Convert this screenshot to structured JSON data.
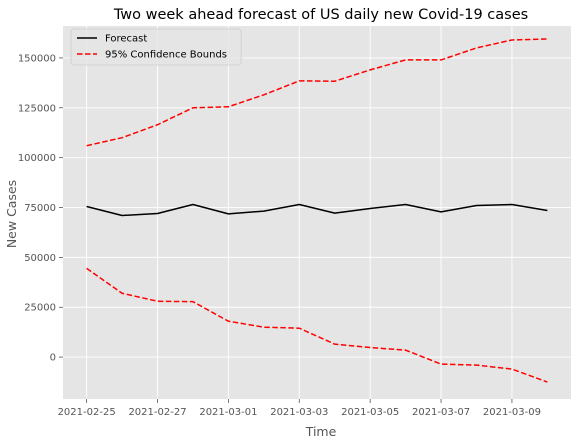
{
  "chart_data": {
    "type": "line",
    "title": "Two week ahead forecast of US daily new Covid-19 cases",
    "xlabel": "Time",
    "ylabel": "New Cases",
    "x": [
      "2021-02-25",
      "2021-02-26",
      "2021-02-27",
      "2021-02-28",
      "2021-03-01",
      "2021-03-02",
      "2021-03-03",
      "2021-03-04",
      "2021-03-05",
      "2021-03-06",
      "2021-03-07",
      "2021-03-08",
      "2021-03-09",
      "2021-03-10"
    ],
    "xlim": [
      "2021-02-24T08:00",
      "2021-03-10T16:00"
    ],
    "ylim": [
      -21000,
      166000
    ],
    "x_ticks": [
      "2021-02-25",
      "2021-02-27",
      "2021-03-01",
      "2021-03-03",
      "2021-03-05",
      "2021-03-07",
      "2021-03-09"
    ],
    "y_ticks": [
      0,
      25000,
      50000,
      75000,
      100000,
      125000,
      150000
    ],
    "grid": true,
    "legend_position": "upper-left",
    "series": [
      {
        "name": "Forecast",
        "color": "#000000",
        "style": "solid",
        "values": [
          75500,
          71000,
          72000,
          76500,
          71800,
          73200,
          76500,
          72200,
          74500,
          76500,
          72800,
          76000,
          76500,
          73500
        ]
      },
      {
        "name": "95% Confidence Bounds",
        "color": "#ff0000",
        "style": "dashed",
        "values": [
          106000,
          110000,
          116500,
          125000,
          125500,
          131500,
          138500,
          138300,
          144000,
          149000,
          149000,
          155000,
          159000,
          159500
        ]
      },
      {
        "name": "",
        "color": "#ff0000",
        "style": "dashed",
        "values": [
          44500,
          32000,
          28000,
          27800,
          18000,
          15000,
          14500,
          6500,
          4800,
          3500,
          -3500,
          -4000,
          -6000,
          -12500
        ]
      }
    ]
  }
}
